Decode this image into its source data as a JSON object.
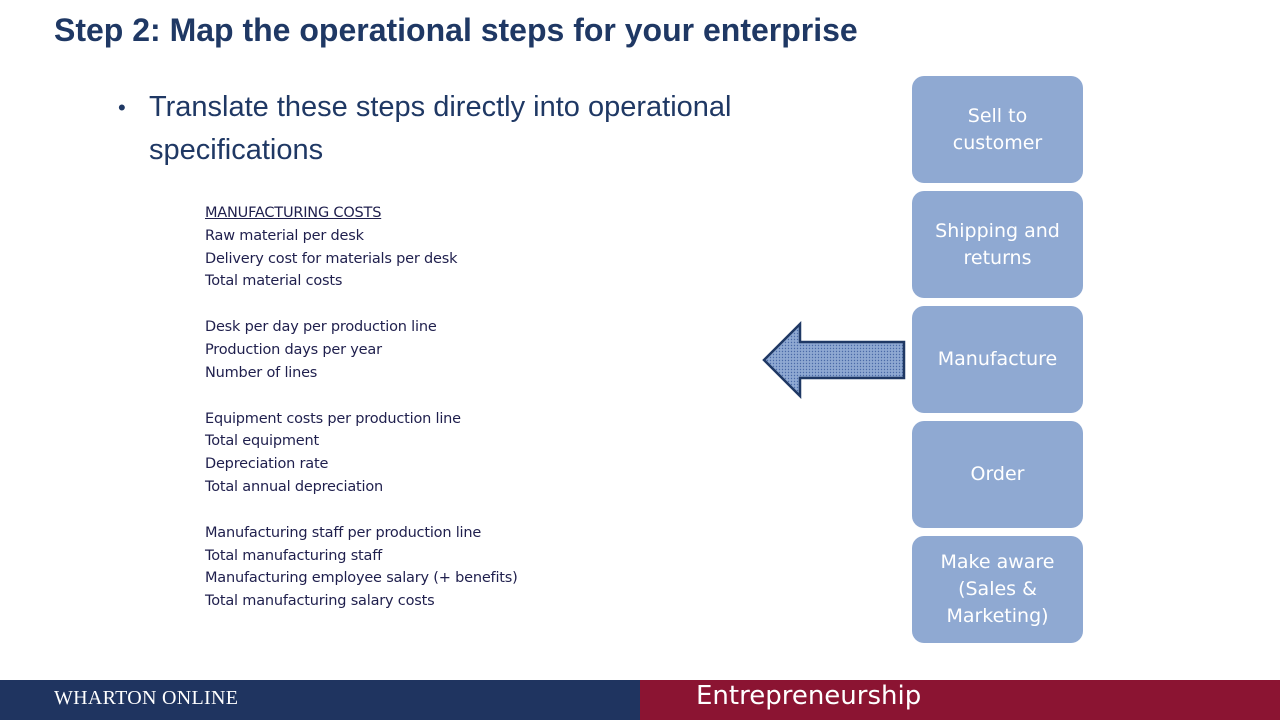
{
  "title": "Step 2: Map the operational steps for your enterprise",
  "bullet": {
    "marker": "•",
    "text": "Translate these steps directly into operational specifications"
  },
  "specs": {
    "heading": "MANUFACTURING COSTS",
    "groups": [
      [
        "Raw material per desk",
        "Delivery cost for materials per desk",
        "Total material costs"
      ],
      [
        "Desk per day per production line",
        "Production days per year",
        "Number of lines"
      ],
      [
        "Equipment costs per production line",
        "Total equipment",
        "Depreciation rate",
        "Total annual depreciation"
      ],
      [
        "Manufacturing staff per production line",
        "Total manufacturing staff",
        "Manufacturing employee salary (+ benefits)",
        "Total manufacturing salary costs"
      ]
    ]
  },
  "steps": [
    "Sell to customer",
    "Shipping and returns",
    "Manufacture",
    "Order",
    "Make aware (Sales & Marketing)"
  ],
  "arrow": {
    "icon": "left-arrow-icon",
    "fill": "#8fa9d2",
    "stroke": "#1f3864"
  },
  "footer": {
    "brand": "WHARTON ONLINE",
    "course": "Entrepreneurship",
    "left_color": "#1f3460",
    "right_color": "#8b1432"
  }
}
